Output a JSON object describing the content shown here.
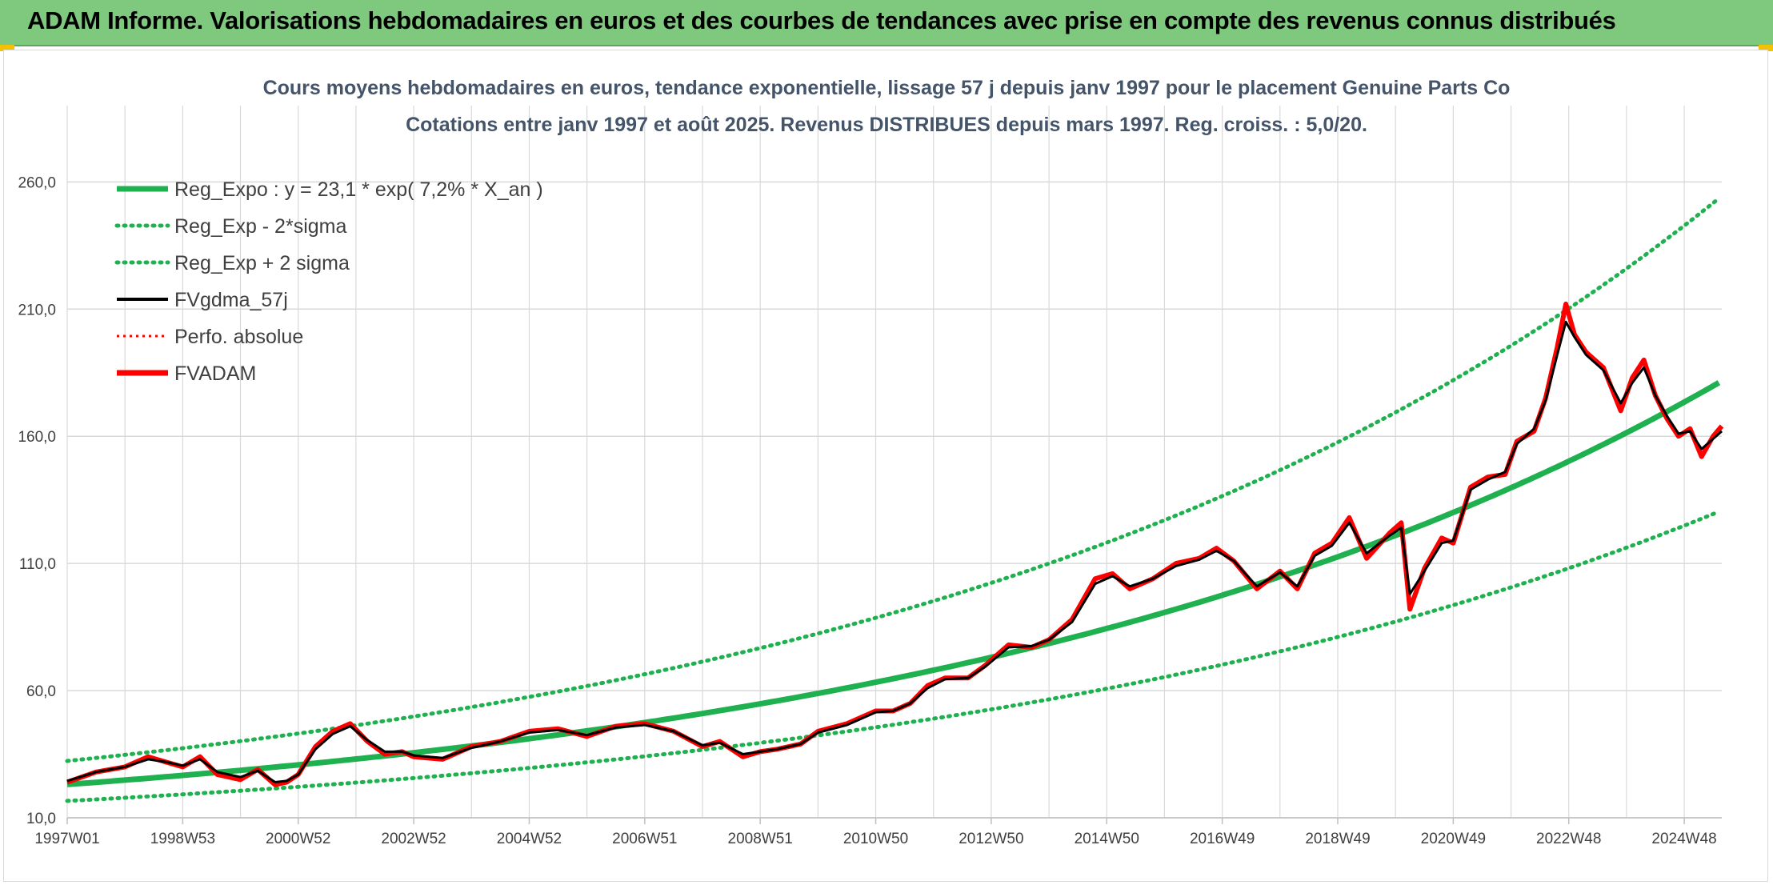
{
  "header": {
    "title": "ADAM Informe. Valorisations hebdomadaires en euros et des courbes de tendances avec prise en compte des revenus connus distribués"
  },
  "colors": {
    "banner": "#7ec97e",
    "reg_expo": "#1fb150",
    "sigma_bands": "#1fb150",
    "fvgdma": "#000000",
    "perfo": "#ff0000",
    "fvadam": "#ff0000",
    "grid": "#d9d9d9"
  },
  "chart_data": {
    "type": "line",
    "title_lines": [
      "Cours moyens hebdomadaires en euros, tendance exponentielle, lissage 57 j depuis janv 1997 pour le placement Genuine Parts Co",
      "Cotations entre janv 1997 et août 2025. Revenus DISTRIBUES depuis mars 1997. Reg. croiss. : 5,0/20."
    ],
    "xlabel": "",
    "ylabel": "",
    "x_range": [
      1997.0,
      2025.65
    ],
    "ylim": [
      10,
      290
    ],
    "y_ticks": [
      10,
      60,
      110,
      160,
      210,
      260
    ],
    "y_tick_labels": [
      "10,0",
      "60,0",
      "110,0",
      "160,0",
      "210,0",
      "260,0"
    ],
    "x_tick_labels": [
      {
        "t": 1997.0,
        "label": "1997W01"
      },
      {
        "t": 1999.0,
        "label": "1998W53"
      },
      {
        "t": 2001.0,
        "label": "2000W52"
      },
      {
        "t": 2003.0,
        "label": "2002W52"
      },
      {
        "t": 2005.0,
        "label": "2004W52"
      },
      {
        "t": 2007.0,
        "label": "2006W51"
      },
      {
        "t": 2009.0,
        "label": "2008W51"
      },
      {
        "t": 2011.0,
        "label": "2010W50"
      },
      {
        "t": 2013.0,
        "label": "2012W50"
      },
      {
        "t": 2015.0,
        "label": "2014W50"
      },
      {
        "t": 2017.0,
        "label": "2016W49"
      },
      {
        "t": 2019.0,
        "label": "2018W49"
      },
      {
        "t": 2021.0,
        "label": "2020W49"
      },
      {
        "t": 2023.0,
        "label": "2022W48"
      },
      {
        "t": 2025.0,
        "label": "2024W48"
      }
    ],
    "grid": true,
    "legend_placement": "top-left",
    "legend": [
      {
        "name": "Reg_Expo : y = 23,1 * exp( 7,2% *  X_an )",
        "style": "solid-thick",
        "color": "#1fb150"
      },
      {
        "name": "Reg_Exp - 2*sigma",
        "style": "dotted",
        "color": "#1fb150"
      },
      {
        "name": "Reg_Exp + 2 sigma",
        "style": "dotted",
        "color": "#1fb150"
      },
      {
        "name": "FVgdma_57j",
        "style": "solid",
        "color": "#000000"
      },
      {
        "name": "Perfo. absolue",
        "style": "dotted-thin",
        "color": "#ff0000"
      },
      {
        "name": "FVADAM",
        "style": "solid-thick",
        "color": "#ff0000"
      }
    ],
    "regression": {
      "a": 23.1,
      "rate": 0.072,
      "t0": 1997.0,
      "sigma_factor_low": 0.72,
      "sigma_factor_high": 1.4
    },
    "series": [
      {
        "name": "FVADAM",
        "x": [
          1997.0,
          1997.5,
          1998.0,
          1998.4,
          1998.7,
          1999.0,
          1999.3,
          1999.6,
          2000.0,
          2000.3,
          2000.6,
          2000.8,
          2001.0,
          2001.3,
          2001.6,
          2001.9,
          2002.2,
          2002.5,
          2002.8,
          2003.0,
          2003.5,
          2004.0,
          2004.5,
          2005.0,
          2005.5,
          2006.0,
          2006.5,
          2007.0,
          2007.5,
          2008.0,
          2008.3,
          2008.7,
          2009.0,
          2009.3,
          2009.7,
          2010.0,
          2010.5,
          2011.0,
          2011.3,
          2011.6,
          2011.9,
          2012.2,
          2012.6,
          2012.9,
          2013.3,
          2013.7,
          2014.0,
          2014.4,
          2014.8,
          2015.1,
          2015.4,
          2015.8,
          2016.2,
          2016.6,
          2016.9,
          2017.2,
          2017.6,
          2018.0,
          2018.3,
          2018.6,
          2018.9,
          2019.2,
          2019.5,
          2019.9,
          2020.1,
          2020.25,
          2020.5,
          2020.8,
          2021.0,
          2021.3,
          2021.6,
          2021.9,
          2022.1,
          2022.4,
          2022.6,
          2022.8,
          2022.95,
          2023.1,
          2023.3,
          2023.6,
          2023.9,
          2024.1,
          2024.3,
          2024.5,
          2024.7,
          2024.9,
          2025.1,
          2025.3,
          2025.5,
          2025.65
        ],
        "values": [
          24,
          28,
          30,
          34,
          32,
          30,
          34,
          27,
          25,
          29,
          23,
          24,
          27,
          38,
          44,
          47,
          40,
          35,
          36,
          34,
          33,
          38,
          40,
          44,
          45,
          42,
          46,
          47,
          44,
          38,
          40,
          34,
          36,
          37,
          39,
          44,
          47,
          52,
          52,
          55,
          62,
          65,
          65,
          70,
          78,
          77,
          80,
          88,
          104,
          106,
          100,
          104,
          110,
          112,
          116,
          111,
          100,
          107,
          100,
          114,
          118,
          128,
          112,
          122,
          126,
          92,
          108,
          120,
          118,
          140,
          144,
          145,
          158,
          162,
          175,
          195,
          212,
          200,
          193,
          187,
          170,
          183,
          190,
          176,
          167,
          160,
          163,
          152,
          160,
          164
        ]
      },
      {
        "name": "FVgdma_57j",
        "x": [
          1997.0,
          1997.5,
          1998.0,
          1998.4,
          1998.7,
          1999.0,
          1999.3,
          1999.6,
          2000.0,
          2000.3,
          2000.6,
          2000.8,
          2001.0,
          2001.3,
          2001.6,
          2001.9,
          2002.2,
          2002.5,
          2002.8,
          2003.0,
          2003.5,
          2004.0,
          2004.5,
          2005.0,
          2005.5,
          2006.0,
          2006.5,
          2007.0,
          2007.5,
          2008.0,
          2008.3,
          2008.7,
          2009.0,
          2009.3,
          2009.7,
          2010.0,
          2010.5,
          2011.0,
          2011.3,
          2011.6,
          2011.9,
          2012.2,
          2012.6,
          2012.9,
          2013.3,
          2013.7,
          2014.0,
          2014.4,
          2014.8,
          2015.1,
          2015.4,
          2015.8,
          2016.2,
          2016.6,
          2016.9,
          2017.2,
          2017.6,
          2018.0,
          2018.3,
          2018.6,
          2018.9,
          2019.2,
          2019.5,
          2019.9,
          2020.1,
          2020.25,
          2020.5,
          2020.8,
          2021.0,
          2021.3,
          2021.6,
          2021.9,
          2022.1,
          2022.4,
          2022.6,
          2022.8,
          2022.95,
          2023.1,
          2023.3,
          2023.6,
          2023.9,
          2024.1,
          2024.3,
          2024.5,
          2024.7,
          2024.9,
          2025.1,
          2025.3,
          2025.5,
          2025.65
        ],
        "values": [
          24.5,
          28,
          30,
          33,
          32,
          30.5,
          33,
          28,
          26,
          28.5,
          24,
          24.5,
          27,
          37,
          43,
          46,
          40.5,
          36,
          36,
          34.5,
          33.5,
          37.5,
          40,
          43.5,
          44.5,
          42.5,
          45.5,
          46.5,
          44,
          38.5,
          39.5,
          35,
          36,
          37,
          39,
          43.5,
          46.5,
          51.5,
          52,
          55,
          61,
          64.5,
          65,
          69.5,
          77,
          77.5,
          80,
          87,
          102,
          105,
          101,
          104,
          109,
          111.5,
          115,
          111,
          101,
          106.5,
          101,
          113,
          117,
          126,
          114,
          121,
          124,
          98,
          107,
          118,
          119,
          139,
          143,
          146,
          157,
          163,
          174,
          192,
          205,
          199,
          192,
          186,
          173,
          181,
          187,
          176,
          168,
          161,
          162,
          155,
          159,
          162
        ]
      }
    ]
  }
}
